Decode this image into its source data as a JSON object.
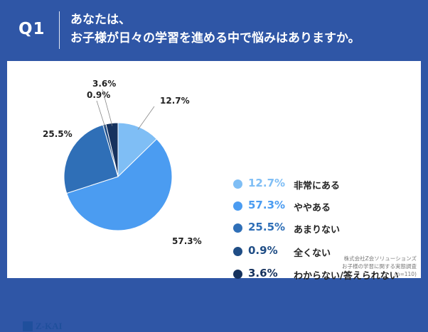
{
  "header": {
    "question_number": "Q1",
    "question_line1": "あなたは、",
    "question_line2": "お子様が日々の学習を進める中で悩みはありますか。"
  },
  "chart_data": {
    "type": "pie",
    "categories": [
      "非常にある",
      "ややある",
      "あまりない",
      "全くない",
      "わからない/答えられない"
    ],
    "values": [
      12.7,
      57.3,
      25.5,
      0.9,
      3.6
    ],
    "value_labels": [
      "12.7%",
      "57.3%",
      "25.5%",
      "0.9%",
      "3.6%"
    ],
    "colors": [
      "#7fbef5",
      "#4b9cf1",
      "#2f6fb7",
      "#1f4d85",
      "#16325e"
    ],
    "start": "12 o'clock",
    "direction": "clockwise",
    "legend_placement": "right"
  },
  "legend": [
    {
      "percent": "12.7%",
      "label": "非常にある",
      "color": "#7fbef5"
    },
    {
      "percent": "57.3%",
      "label": "ややある",
      "color": "#4b9cf1"
    },
    {
      "percent": "25.5%",
      "label": "あまりない",
      "color": "#2f6fb7"
    },
    {
      "percent": "0.9%",
      "label": "全くない",
      "color": "#1f4d85"
    },
    {
      "percent": "3.6%",
      "label": "わからない/答えられない",
      "color": "#16325e"
    }
  ],
  "source": {
    "line1": "株式会社Z会ソリューションズ",
    "line2": "お子様の学習に関する実態調査",
    "line3": "(n=110)"
  },
  "logo": {
    "text": "Z-KAI"
  }
}
